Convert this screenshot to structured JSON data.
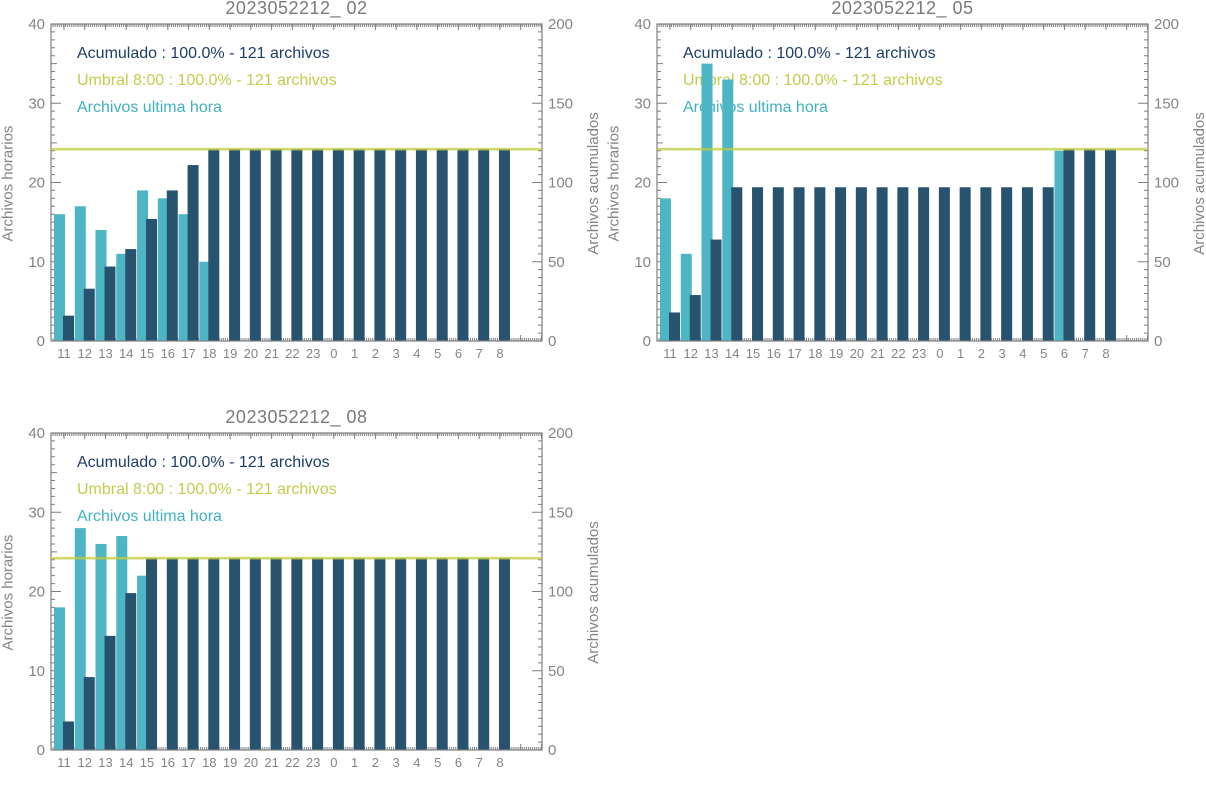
{
  "colors": {
    "teal_bar": "#4db5c3",
    "navy_bar": "#28536f",
    "navy_text": "#1e3e68",
    "umbral_text": "#c2cc4b",
    "umbral_line": "#c2cc3c",
    "teal_text": "#41b1c2",
    "frame": "#7f7f7f",
    "tick_label": "#848484",
    "title": "#7a7a7a"
  },
  "axes": {
    "hours": [
      "11",
      "12",
      "13",
      "14",
      "15",
      "16",
      "17",
      "18",
      "19",
      "20",
      "21",
      "22",
      "23",
      "0",
      "1",
      "2",
      "3",
      "4",
      "5",
      "6",
      "7",
      "8"
    ],
    "left_ticks": [
      0,
      10,
      20,
      30,
      40
    ],
    "right_ticks": [
      0,
      50,
      100,
      150,
      200
    ],
    "left_max": 40,
    "right_max": 200
  },
  "chart_data": [
    {
      "type": "bar",
      "title": "2023052212_ 02",
      "ylabel_left": "Archivos horarios",
      "ylabel_right": "Archivos acumulados",
      "ylim_left": [
        0,
        40
      ],
      "ylim_right": [
        0,
        200
      ],
      "x_categories": [
        "11",
        "12",
        "13",
        "14",
        "15",
        "16",
        "17",
        "18",
        "19",
        "20",
        "21",
        "22",
        "23",
        "0",
        "1",
        "2",
        "3",
        "4",
        "5",
        "6",
        "7",
        "8"
      ],
      "legend": [
        "Acumulado : 100.0% - 121 archivos",
        "Umbral 8:00 : 100.0% - 121 archivos",
        "Archivos ultima hora"
      ],
      "series": [
        {
          "name": "Archivos ultima hora",
          "axis": "left",
          "color_key": "teal_bar",
          "values": [
            16,
            17,
            14,
            11,
            19,
            18,
            16,
            10,
            0,
            0,
            0,
            0,
            0,
            0,
            0,
            0,
            0,
            0,
            0,
            0,
            0,
            0
          ]
        },
        {
          "name": "Acumulado",
          "axis": "right",
          "color_key": "navy_bar",
          "values": [
            16,
            33,
            47,
            58,
            77,
            95,
            111,
            121,
            121,
            121,
            121,
            121,
            121,
            121,
            121,
            121,
            121,
            121,
            121,
            121,
            121,
            121
          ]
        }
      ],
      "umbral_line": {
        "value": 121,
        "axis": "right"
      }
    },
    {
      "type": "bar",
      "title": "2023052212_ 05",
      "ylabel_left": "Archivos horarios",
      "ylabel_right": "Archivos acumulados",
      "ylim_left": [
        0,
        40
      ],
      "ylim_right": [
        0,
        200
      ],
      "x_categories": [
        "11",
        "12",
        "13",
        "14",
        "15",
        "16",
        "17",
        "18",
        "19",
        "20",
        "21",
        "22",
        "23",
        "0",
        "1",
        "2",
        "3",
        "4",
        "5",
        "6",
        "7",
        "8"
      ],
      "legend": [
        "Acumulado : 100.0% - 121 archivos",
        "Umbral 8:00 : 100.0% - 121 archivos",
        "Archivos ultima hora"
      ],
      "series": [
        {
          "name": "Archivos ultima hora",
          "axis": "left",
          "color_key": "teal_bar",
          "values": [
            18,
            11,
            35,
            33,
            0,
            0,
            0,
            0,
            0,
            0,
            0,
            0,
            0,
            0,
            0,
            0,
            0,
            0,
            0,
            24,
            0,
            0
          ]
        },
        {
          "name": "Acumulado",
          "axis": "right",
          "color_key": "navy_bar",
          "values": [
            18,
            29,
            64,
            97,
            97,
            97,
            97,
            97,
            97,
            97,
            97,
            97,
            97,
            97,
            97,
            97,
            97,
            97,
            97,
            121,
            121,
            121
          ]
        }
      ],
      "umbral_line": {
        "value": 121,
        "axis": "right"
      }
    },
    {
      "type": "bar",
      "title": "2023052212_ 08",
      "ylabel_left": "Archivos horarios",
      "ylabel_right": "Archivos acumulados",
      "ylim_left": [
        0,
        40
      ],
      "ylim_right": [
        0,
        200
      ],
      "x_categories": [
        "11",
        "12",
        "13",
        "14",
        "15",
        "16",
        "17",
        "18",
        "19",
        "20",
        "21",
        "22",
        "23",
        "0",
        "1",
        "2",
        "3",
        "4",
        "5",
        "6",
        "7",
        "8"
      ],
      "legend": [
        "Acumulado : 100.0% - 121 archivos",
        "Umbral 8:00 : 100.0% - 121 archivos",
        "Archivos ultima hora"
      ],
      "series": [
        {
          "name": "Archivos ultima hora",
          "axis": "left",
          "color_key": "teal_bar",
          "values": [
            18,
            28,
            26,
            27,
            22,
            0,
            0,
            0,
            0,
            0,
            0,
            0,
            0,
            0,
            0,
            0,
            0,
            0,
            0,
            0,
            0,
            0
          ]
        },
        {
          "name": "Acumulado",
          "axis": "right",
          "color_key": "navy_bar",
          "values": [
            18,
            46,
            72,
            99,
            121,
            121,
            121,
            121,
            121,
            121,
            121,
            121,
            121,
            121,
            121,
            121,
            121,
            121,
            121,
            121,
            121,
            121
          ]
        }
      ],
      "umbral_line": {
        "value": 121,
        "axis": "right"
      }
    }
  ]
}
